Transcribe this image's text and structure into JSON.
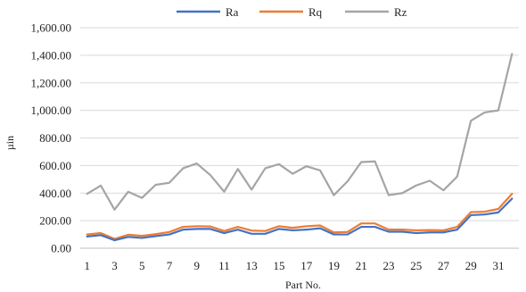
{
  "chart_data": {
    "type": "line",
    "xlabel": "Part No.",
    "ylabel": "µin",
    "ylim": [
      0,
      1600
    ],
    "yticks": [
      "0.00",
      "200.00",
      "400.00",
      "600.00",
      "800.00",
      "1,000.00",
      "1,200.00",
      "1,400.00",
      "1,600.00"
    ],
    "x": [
      1,
      2,
      3,
      4,
      5,
      6,
      7,
      8,
      9,
      10,
      11,
      12,
      13,
      14,
      15,
      16,
      17,
      18,
      19,
      20,
      21,
      22,
      23,
      24,
      25,
      26,
      27,
      28,
      29,
      30,
      31,
      32
    ],
    "xtick_labels": [
      "1",
      "3",
      "5",
      "7",
      "9",
      "11",
      "13",
      "15",
      "17",
      "19",
      "21",
      "23",
      "25",
      "27",
      "29",
      "31"
    ],
    "grid": "horizontal",
    "legend_position": "top",
    "series": [
      {
        "name": "Ra",
        "color": "#4472C4",
        "values": [
          85,
          95,
          58,
          82,
          75,
          88,
          100,
          135,
          140,
          140,
          110,
          135,
          105,
          105,
          140,
          130,
          135,
          145,
          100,
          100,
          155,
          155,
          120,
          120,
          110,
          115,
          115,
          135,
          240,
          245,
          260,
          360
        ]
      },
      {
        "name": "Rq",
        "color": "#ED7D31",
        "values": [
          100,
          110,
          68,
          98,
          90,
          102,
          118,
          155,
          160,
          158,
          125,
          155,
          128,
          125,
          160,
          148,
          160,
          165,
          115,
          118,
          180,
          180,
          135,
          135,
          130,
          132,
          130,
          155,
          262,
          265,
          285,
          395
        ]
      },
      {
        "name": "Rz",
        "color": "#A5A5A5",
        "values": [
          395,
          455,
          280,
          410,
          365,
          460,
          475,
          580,
          615,
          530,
          410,
          575,
          425,
          580,
          610,
          540,
          595,
          565,
          385,
          485,
          625,
          630,
          385,
          400,
          455,
          490,
          420,
          520,
          925,
          985,
          1000,
          1410
        ]
      }
    ]
  }
}
